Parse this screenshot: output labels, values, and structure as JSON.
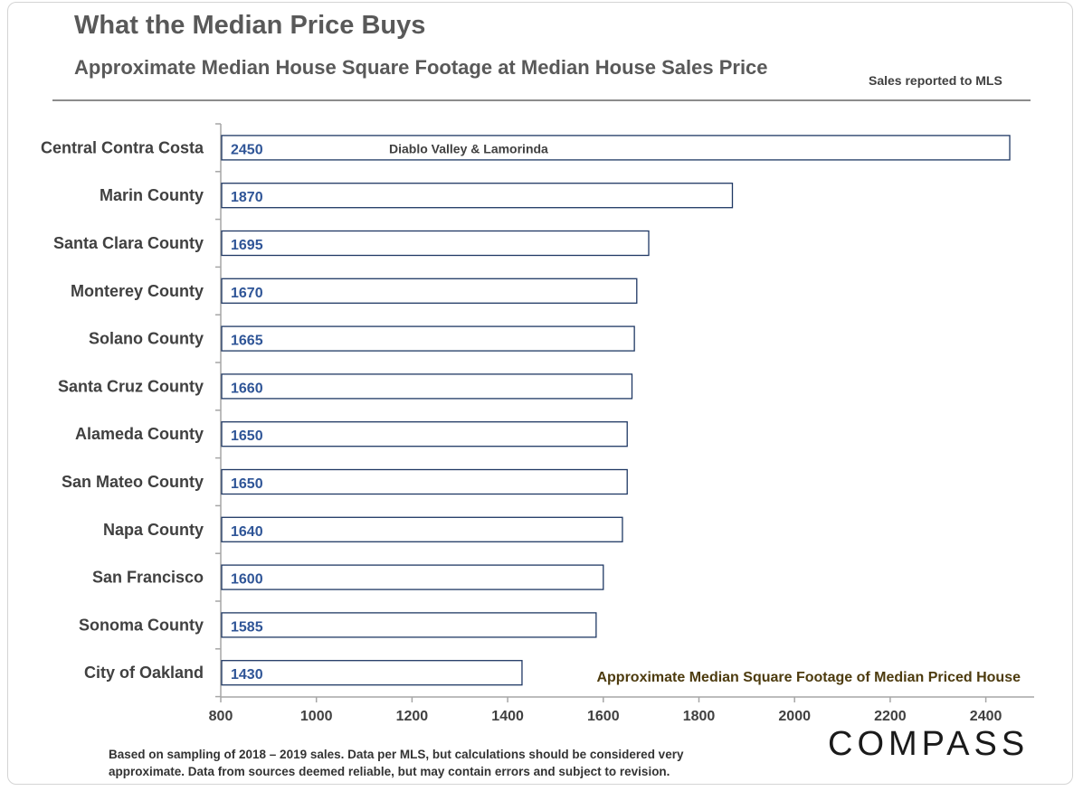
{
  "header": {
    "title": "What the Median Price Buys",
    "subtitle": "Approximate Median House Square Footage at Median House Sales Price",
    "source_note": "Sales reported to MLS"
  },
  "footnote": "Based on sampling of 2018 – 2019 sales. Data per MLS, but calculations should be considered very approximate. Data from sources deemed reliable, but may contain errors and subject to revision.",
  "logo": "COMPASS",
  "colors": {
    "bar_fill": "#ffffff",
    "bar_stroke": "#1f3864",
    "value_label": "#2f5597",
    "category_label": "#404040",
    "axis": "#a6a6a6",
    "annotation": "#4d3b0e"
  },
  "chart_data": {
    "type": "bar",
    "orientation": "horizontal",
    "categories": [
      "Central Contra Costa",
      "Marin County",
      "Santa Clara County",
      "Monterey County",
      "Solano County",
      "Santa Cruz County",
      "Alameda County",
      "San Mateo County",
      "Napa County",
      "San Francisco",
      "Sonoma County",
      "City of Oakland"
    ],
    "values": [
      2450,
      1870,
      1695,
      1670,
      1665,
      1660,
      1650,
      1650,
      1640,
      1600,
      1585,
      1430
    ],
    "xlim": [
      800,
      2500
    ],
    "xticks": [
      800,
      1000,
      1200,
      1400,
      1600,
      1800,
      2000,
      2200,
      2400
    ],
    "bar_annotation": {
      "category": "Central Contra Costa",
      "text": "Diablo Valley & Lamorinda"
    },
    "series_label": "Approximate Median Square Footage of Median Priced House",
    "xlabel": "",
    "ylabel": ""
  }
}
